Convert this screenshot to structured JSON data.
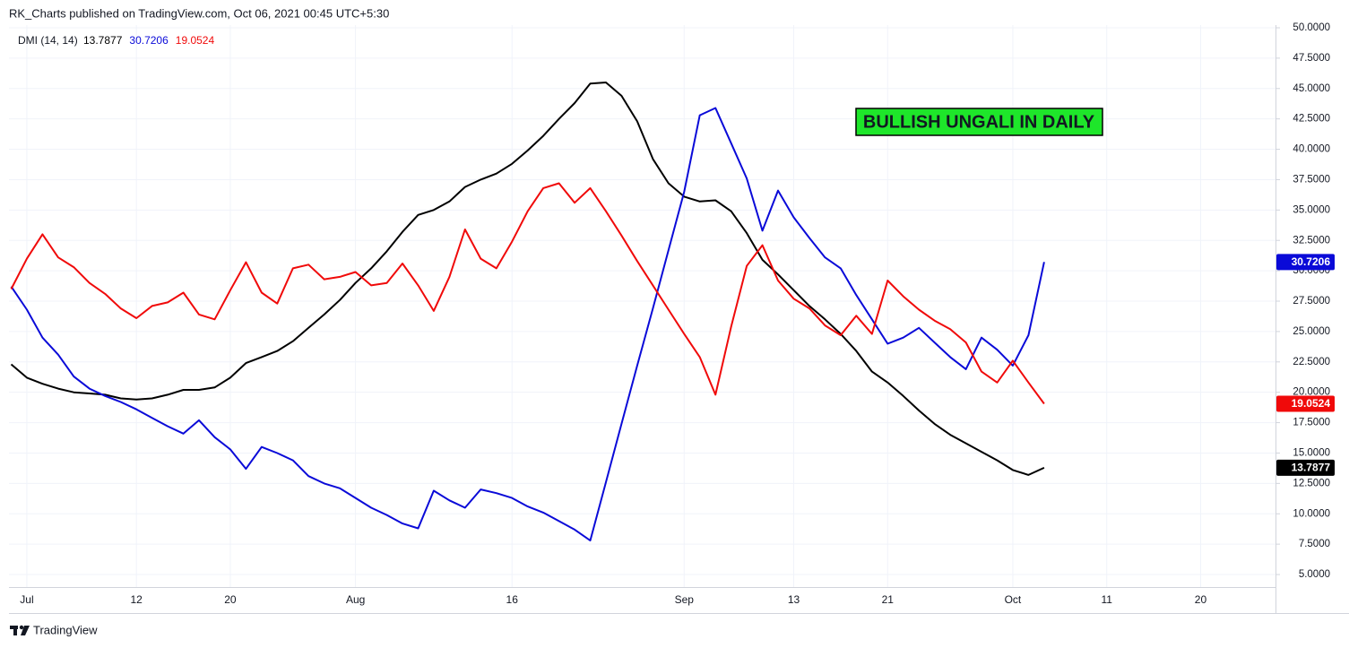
{
  "header": {
    "title": "RK_Charts published on TradingView.com, Oct 06, 2021 00:45 UTC+5:30"
  },
  "footer": {
    "brand": "TradingView"
  },
  "chart_data": {
    "type": "line",
    "indicator": "DMI (14, 14)",
    "annotation": "BULLISH UNGALI IN DAILY",
    "grid": true,
    "categories": [
      null,
      "Jul",
      null,
      null,
      null,
      null,
      null,
      null,
      "12",
      null,
      null,
      null,
      null,
      null,
      "20",
      null,
      null,
      null,
      null,
      null,
      null,
      null,
      "Aug",
      null,
      null,
      null,
      null,
      null,
      null,
      null,
      null,
      null,
      "16",
      null,
      null,
      null,
      null,
      null,
      null,
      null,
      null,
      null,
      null,
      "Sep",
      null,
      null,
      null,
      null,
      null,
      null,
      "13",
      null,
      null,
      null,
      null,
      null,
      "21",
      null,
      null,
      null,
      null,
      null,
      null,
      null,
      "Oct",
      null,
      null,
      null,
      null,
      null,
      "11",
      null,
      null,
      null,
      null,
      null,
      "20",
      null,
      null,
      null,
      null
    ],
    "ylim": [
      3.97,
      50.22
    ],
    "yticks": [
      {
        "value": 5,
        "label": "5.0000"
      },
      {
        "value": 7.5,
        "label": "7.5000"
      },
      {
        "value": 10,
        "label": "10.0000"
      },
      {
        "value": 12.5,
        "label": "12.5000"
      },
      {
        "value": 15,
        "label": "15.0000"
      },
      {
        "value": 17.5,
        "label": "17.5000"
      },
      {
        "value": 20,
        "label": "20.0000"
      },
      {
        "value": 22.5,
        "label": "22.5000"
      },
      {
        "value": 25,
        "label": "25.0000"
      },
      {
        "value": 27.5,
        "label": "27.5000"
      },
      {
        "value": 30,
        "label": "30.0000"
      },
      {
        "value": 32.5,
        "label": "32.5000"
      },
      {
        "value": 35,
        "label": "35.0000"
      },
      {
        "value": 37.5,
        "label": "37.5000"
      },
      {
        "value": 40,
        "label": "40.0000"
      },
      {
        "value": 42.5,
        "label": "42.5000"
      },
      {
        "value": 45,
        "label": "45.0000"
      },
      {
        "value": 47.5,
        "label": "47.5000"
      },
      {
        "value": 50,
        "label": "50.0000"
      }
    ],
    "series": [
      {
        "color": "#000000",
        "values": [
          22.3,
          21.2,
          20.7,
          20.3,
          20.0,
          19.9,
          19.8,
          19.5,
          19.4,
          19.5,
          19.8,
          20.2,
          20.2,
          20.4,
          21.2,
          22.4,
          22.9,
          23.4,
          24.2,
          25.3,
          26.4,
          27.6,
          29.0,
          30.2,
          31.6,
          33.2,
          34.6,
          35.0,
          35.7,
          36.9,
          37.5,
          38.0,
          38.8,
          39.9,
          41.1,
          42.5,
          43.8,
          45.4,
          45.5,
          44.4,
          42.3,
          39.2,
          37.2,
          36.1,
          35.7,
          35.8,
          34.9,
          33.1,
          30.9,
          29.7,
          28.4,
          27.1,
          26.0,
          24.8,
          23.4,
          21.7,
          20.8,
          19.7,
          18.5,
          17.4,
          16.5,
          15.8,
          15.1,
          14.4,
          13.6,
          13.2,
          13.7877,
          null,
          null,
          null,
          null,
          null,
          null,
          null,
          null,
          null,
          null,
          null,
          null,
          null,
          null
        ]
      },
      {
        "color": "#0a0ad8",
        "values": [
          28.7,
          26.8,
          24.5,
          23.1,
          21.3,
          20.3,
          19.7,
          19.2,
          18.6,
          17.9,
          17.2,
          16.6,
          17.7,
          16.3,
          15.3,
          13.7,
          15.5,
          15.0,
          14.4,
          13.1,
          12.5,
          12.1,
          11.3,
          10.5,
          9.9,
          9.2,
          8.8,
          11.9,
          11.1,
          10.5,
          12.0,
          11.7,
          11.3,
          10.6,
          10.1,
          9.4,
          8.7,
          7.8,
          12.6,
          17.4,
          22.2,
          26.9,
          31.7,
          36.5,
          42.8,
          43.4,
          40.5,
          37.6,
          33.3,
          36.6,
          34.4,
          32.7,
          31.1,
          30.2,
          28.0,
          26.0,
          24.0,
          24.5,
          25.3,
          24.1,
          22.9,
          21.9,
          24.5,
          23.5,
          22.2,
          24.7,
          30.7206,
          null,
          null,
          null,
          null,
          null,
          null,
          null,
          null,
          null,
          null,
          null,
          null,
          null,
          null
        ]
      },
      {
        "color": "#f00a0a",
        "values": [
          28.5,
          31.0,
          33.0,
          31.1,
          30.3,
          29.0,
          28.1,
          26.9,
          26.1,
          27.1,
          27.4,
          28.2,
          26.4,
          26.0,
          28.4,
          30.7,
          28.2,
          27.3,
          30.2,
          30.5,
          29.3,
          29.5,
          29.9,
          28.8,
          29.0,
          30.6,
          28.8,
          26.7,
          29.5,
          33.4,
          31.0,
          30.2,
          32.4,
          34.9,
          36.8,
          37.2,
          35.6,
          36.8,
          34.9,
          32.9,
          30.8,
          28.8,
          26.8,
          24.8,
          22.9,
          19.8,
          25.4,
          30.4,
          32.1,
          29.2,
          27.7,
          26.9,
          25.5,
          24.7,
          26.3,
          24.8,
          29.2,
          27.9,
          26.8,
          25.9,
          25.2,
          24.1,
          21.7,
          20.8,
          22.6,
          20.8,
          19.0524,
          null,
          null,
          null,
          null,
          null,
          null,
          null,
          null,
          null,
          null,
          null,
          null,
          null,
          null
        ]
      }
    ]
  }
}
